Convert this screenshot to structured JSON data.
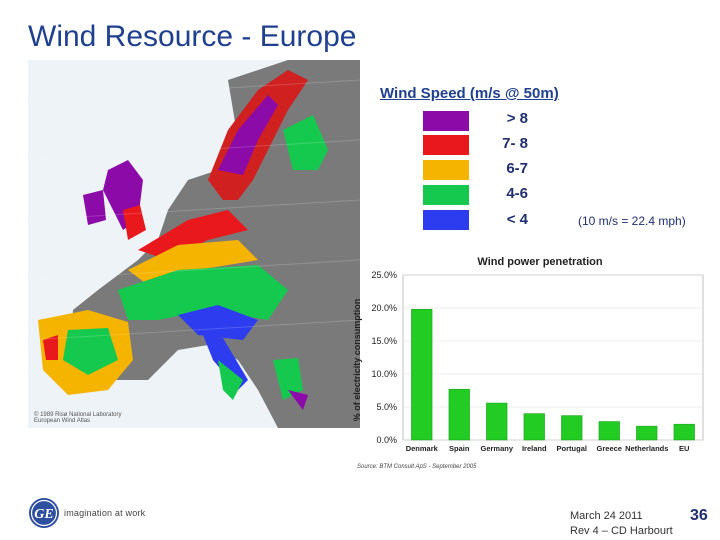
{
  "slide": {
    "title": "Wind Resource - Europe",
    "page_number": "36"
  },
  "legend": {
    "title": "Wind Speed (m/s @ 50m)",
    "items": [
      {
        "label": "> 8",
        "color": "#8b0aa8"
      },
      {
        "label": "7- 8",
        "color": "#e8181d"
      },
      {
        "label": "6-7",
        "color": "#f5b400"
      },
      {
        "label": "4-6",
        "color": "#15c94e"
      },
      {
        "label": "< 4",
        "color": "#2e3cf0"
      }
    ],
    "conversion_note": "(10 m/s = 22.4 mph)"
  },
  "map": {
    "credit_line1": "© 1989 Risø National Laboratory",
    "credit_line2": "European Wind Atlas"
  },
  "chart_data": {
    "type": "bar",
    "title": "Wind power penetration",
    "ylabel": "% of electricity consumption",
    "categories": [
      "Denmark",
      "Spain",
      "Germany",
      "Ireland",
      "Portugal",
      "Greece",
      "Netherlands",
      "EU"
    ],
    "values": [
      19.8,
      7.7,
      5.6,
      4.0,
      3.7,
      2.8,
      2.1,
      2.4
    ],
    "yticks": [
      "0.0%",
      "5.0%",
      "10.0%",
      "15.0%",
      "20.0%",
      "25.0%"
    ],
    "ylim": [
      0,
      25
    ],
    "bar_color": "#22cc22",
    "source": "Source: BTM Consult ApS - September 2005"
  },
  "footer": {
    "tagline": "imagination at work",
    "date": "March 24 2011",
    "revision": "Rev 4 – CD Harbourt"
  }
}
